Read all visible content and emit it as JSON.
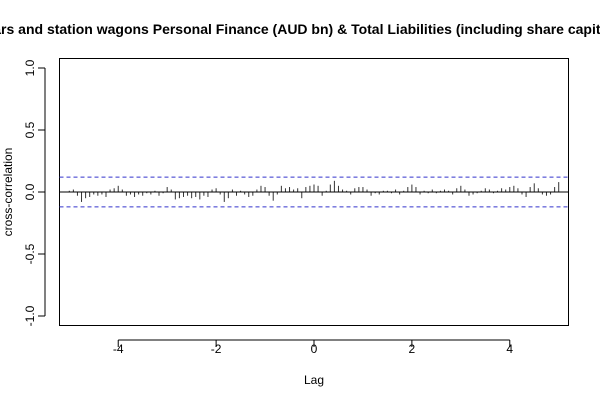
{
  "chart_data": {
    "type": "bar",
    "title": "Cars and station wagons Personal Finance (AUD bn) & Total Liabilities (including share capital)",
    "xlabel": "Lag",
    "ylabel": "cross-correlation",
    "xlim": [
      -5.2,
      5.2
    ],
    "ylim": [
      -1.0,
      1.0
    ],
    "xticks": [
      -4,
      -2,
      0,
      2,
      4
    ],
    "xtick_labels": [
      "-4",
      "-2",
      "0",
      "2",
      "4"
    ],
    "yticks": [
      -1.0,
      -0.5,
      0.0,
      0.5,
      1.0
    ],
    "ytick_labels": [
      "-1.0",
      "-0.5",
      "0.0",
      "0.5",
      "1.0"
    ],
    "confidence_band": 0.12,
    "colors": {
      "bars": "#333333",
      "zero_line": "#000000",
      "confidence": "#3333cc"
    },
    "x": [
      -5.0,
      -4.9167,
      -4.8333,
      -4.75,
      -4.6667,
      -4.5833,
      -4.5,
      -4.4167,
      -4.3333,
      -4.25,
      -4.1667,
      -4.0833,
      -4.0,
      -3.9167,
      -3.8333,
      -3.75,
      -3.6667,
      -3.5833,
      -3.5,
      -3.4167,
      -3.3333,
      -3.25,
      -3.1667,
      -3.0833,
      -3.0,
      -2.9167,
      -2.8333,
      -2.75,
      -2.6667,
      -2.5833,
      -2.5,
      -2.4167,
      -2.3333,
      -2.25,
      -2.1667,
      -2.0833,
      -2.0,
      -1.9167,
      -1.8333,
      -1.75,
      -1.6667,
      -1.5833,
      -1.5,
      -1.4167,
      -1.3333,
      -1.25,
      -1.1667,
      -1.0833,
      -1.0,
      -0.9167,
      -0.8333,
      -0.75,
      -0.6667,
      -0.5833,
      -0.5,
      -0.4167,
      -0.3333,
      -0.25,
      -0.1667,
      -0.0833,
      0.0,
      0.0833,
      0.1667,
      0.25,
      0.3333,
      0.4167,
      0.5,
      0.5833,
      0.6667,
      0.75,
      0.8333,
      0.9167,
      1.0,
      1.0833,
      1.1667,
      1.25,
      1.3333,
      1.4167,
      1.5,
      1.5833,
      1.6667,
      1.75,
      1.8333,
      1.9167,
      2.0,
      2.0833,
      2.1667,
      2.25,
      2.3333,
      2.4167,
      2.5,
      2.5833,
      2.6667,
      2.75,
      2.8333,
      2.9167,
      3.0,
      3.0833,
      3.1667,
      3.25,
      3.3333,
      3.4167,
      3.5,
      3.5833,
      3.6667,
      3.75,
      3.8333,
      3.9167,
      4.0,
      4.0833,
      4.1667,
      4.25,
      4.3333,
      4.4167,
      4.5,
      4.5833,
      4.6667,
      4.75,
      4.8333,
      4.9167,
      5.0
    ],
    "values": [
      0.01,
      0.02,
      -0.03,
      -0.08,
      -0.05,
      -0.04,
      -0.02,
      -0.03,
      -0.02,
      -0.04,
      0.02,
      0.03,
      0.05,
      0.02,
      -0.03,
      -0.02,
      -0.04,
      -0.02,
      -0.03,
      -0.01,
      -0.02,
      0.01,
      -0.03,
      -0.01,
      0.04,
      0.02,
      -0.06,
      -0.05,
      -0.04,
      -0.03,
      -0.05,
      -0.04,
      -0.06,
      -0.03,
      -0.04,
      0.02,
      0.03,
      -0.02,
      -0.08,
      -0.05,
      0.02,
      -0.03,
      0.01,
      -0.02,
      -0.04,
      -0.03,
      0.02,
      0.05,
      0.04,
      -0.03,
      -0.07,
      -0.02,
      0.05,
      0.03,
      0.04,
      0.02,
      0.03,
      -0.05,
      0.04,
      0.05,
      0.06,
      0.05,
      -0.03,
      0.01,
      0.06,
      0.09,
      0.05,
      0.02,
      0.01,
      -0.02,
      0.03,
      0.04,
      0.04,
      0.02,
      -0.03,
      -0.01,
      -0.02,
      0.01,
      0.01,
      -0.01,
      0.02,
      -0.02,
      0.01,
      0.04,
      0.06,
      0.04,
      -0.02,
      0.01,
      -0.01,
      0.02,
      -0.01,
      0.01,
      0.02,
      0.01,
      -0.02,
      0.03,
      0.05,
      0.02,
      -0.03,
      -0.02,
      -0.01,
      0.01,
      0.03,
      0.02,
      -0.01,
      0.01,
      0.03,
      0.02,
      0.04,
      0.05,
      0.03,
      -0.02,
      -0.04,
      0.04,
      0.07,
      0.03,
      -0.02,
      -0.03,
      -0.02,
      0.04,
      0.08
    ]
  }
}
